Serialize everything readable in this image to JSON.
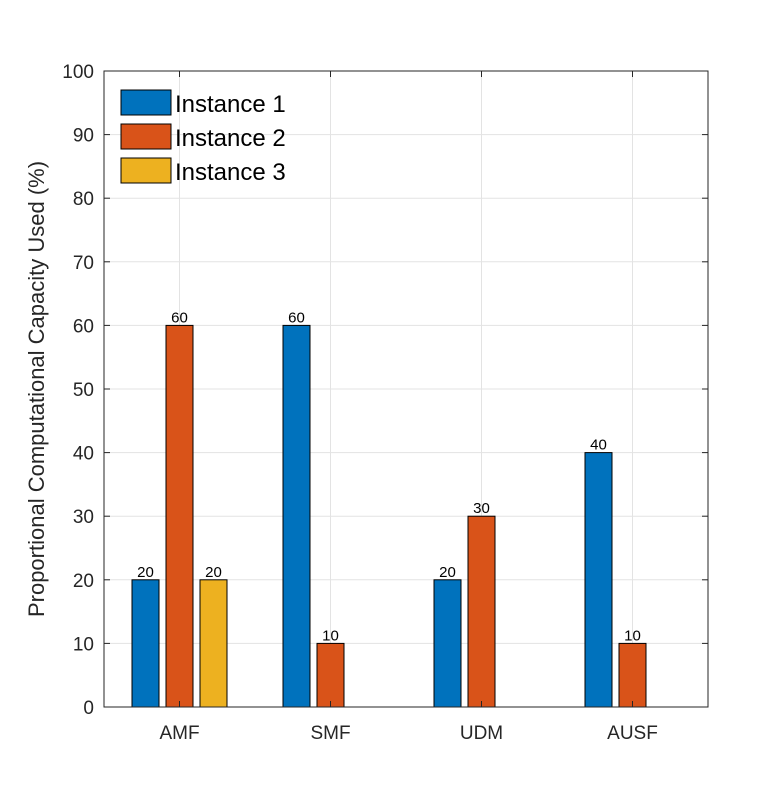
{
  "chart_data": {
    "type": "bar",
    "title": "",
    "xlabel": "",
    "ylabel": "Proportional Computational Capacity Used (%)",
    "ylim": [
      0,
      100
    ],
    "yticks": [
      0,
      10,
      20,
      30,
      40,
      50,
      60,
      70,
      80,
      90,
      100
    ],
    "grid": true,
    "legend_position": "top-left",
    "categories": [
      "AMF",
      "SMF",
      "UDM",
      "AUSF"
    ],
    "series": [
      {
        "name": "Instance 1",
        "color": "#0072BD",
        "values": [
          20,
          60,
          20,
          40
        ]
      },
      {
        "name": "Instance 2",
        "color": "#D95319",
        "values": [
          60,
          10,
          30,
          10
        ]
      },
      {
        "name": "Instance 3",
        "color": "#EDB120",
        "values": [
          20,
          0,
          0,
          0
        ]
      }
    ]
  }
}
